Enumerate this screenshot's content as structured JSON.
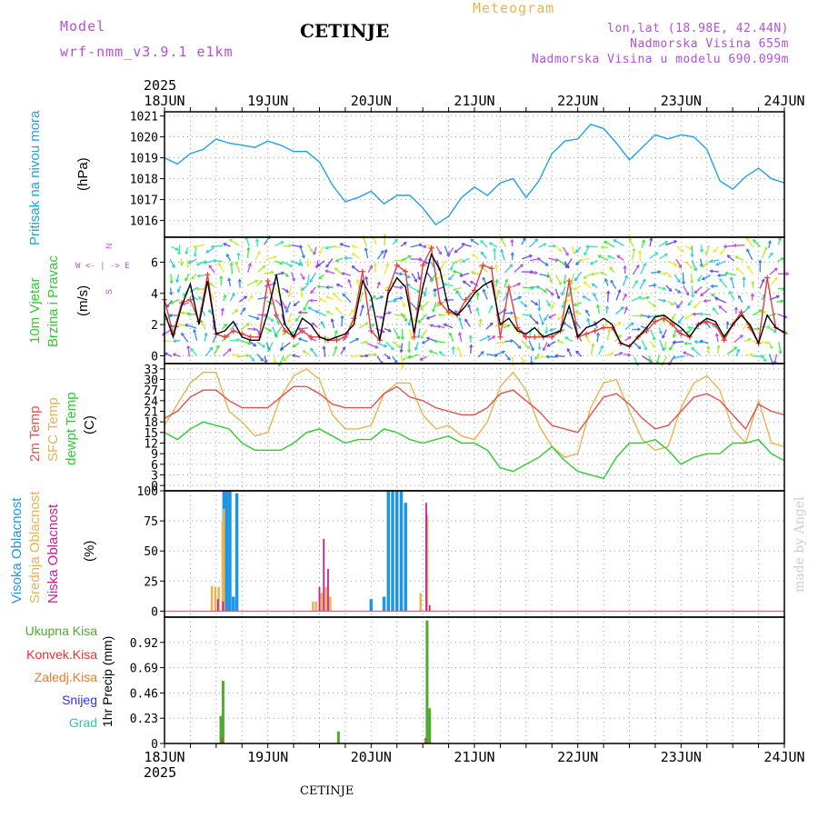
{
  "header": {
    "model_label": "Model",
    "model_name": "wrf-nmm_v3.9.1 e1km",
    "station": "CETINJE",
    "meteogram": "Meteogram",
    "coords": "lon,lat (18.98E, 42.44N)",
    "elevation": "Nadmorska Visina 655m",
    "model_elevation": "Nadmorska Visina u modelu 690.099m"
  },
  "footer": {
    "station": "CETINJE",
    "credit": "made by Angel"
  },
  "colors": {
    "pressure": "#1fa2e6",
    "wind_speed": "#000000",
    "gust": "#e63c3c",
    "t2m": "#e65050",
    "sfc": "#e6b450",
    "dew": "#2ecc2e",
    "high_cloud": "#1e96e6",
    "mid_cloud": "#e6b450",
    "low_cloud": "#c81e96",
    "total_precip": "#50aa32",
    "convective": "#e63232",
    "freezing": "#f07828",
    "snow": "#3232e6",
    "hail": "#28c8b4",
    "purple_text": "#b450dc"
  },
  "time_axis": {
    "top_year": "2025",
    "bottom_year": "2025",
    "day_labels": [
      "18JUN",
      "19JUN",
      "20JUN",
      "21JUN",
      "22JUN",
      "23JUN",
      "24JUN"
    ]
  },
  "panel_labels": {
    "pressure": [
      "Pritisak na nivou mora"
    ],
    "pressure_unit": "(hPa)",
    "wind": [
      "10m Vjetar",
      "Brzina i Pravac"
    ],
    "wind_unit": "(m/s)",
    "compass": [
      "N",
      "W <- | -> E",
      "S"
    ],
    "temp": [
      "2m Temp",
      "SFC Temp",
      "dewpt Temp"
    ],
    "temp_unit": "(C)",
    "cloud": [
      "Visoka Oblacnost",
      "Srednja Oblacnost",
      "Niska Oblacnost"
    ],
    "cloud_unit": "(%)",
    "precip": [
      "Ukupna Kisa",
      "Konvek.Kisa",
      "Zaledj.Kisa",
      "Snijeg",
      "Grad"
    ],
    "precip_unit": "1hr Precip (mm)"
  },
  "chart_data": [
    {
      "type": "line",
      "panel": "pressure",
      "ylabel": "Pritisak na nivou mora (hPa)",
      "ylim": [
        1015.2,
        1021.2
      ],
      "yticks": [
        1016,
        1017,
        1018,
        1019,
        1020,
        1021
      ],
      "xlim_hours": [
        0,
        144
      ],
      "series": [
        {
          "name": "Pritisak na nivou mora",
          "x": [
            0,
            3,
            6,
            9,
            12,
            15,
            18,
            21,
            24,
            27,
            30,
            33,
            36,
            39,
            42,
            45,
            48,
            51,
            54,
            57,
            60,
            63,
            66,
            69,
            72,
            75,
            78,
            81,
            84,
            87,
            90,
            93,
            96,
            99,
            102,
            105,
            108,
            111,
            114,
            117,
            120,
            123,
            126,
            129,
            132,
            135,
            138,
            141,
            144
          ],
          "values": [
            1019.0,
            1018.7,
            1019.2,
            1019.4,
            1019.9,
            1019.7,
            1019.6,
            1019.5,
            1019.8,
            1019.6,
            1019.3,
            1019.3,
            1018.8,
            1017.7,
            1016.9,
            1017.1,
            1017.4,
            1016.8,
            1017.2,
            1017.2,
            1016.6,
            1015.8,
            1016.2,
            1017.1,
            1017.6,
            1017.2,
            1017.8,
            1018.0,
            1017.1,
            1017.9,
            1019.2,
            1019.8,
            1019.9,
            1020.6,
            1020.4,
            1019.7,
            1018.9,
            1019.5,
            1020.1,
            1019.9,
            1020.1,
            1020.0,
            1019.4,
            1017.9,
            1017.5,
            1018.1,
            1018.5,
            1018.0,
            1017.8
          ]
        }
      ]
    },
    {
      "type": "line",
      "panel": "wind",
      "ylabel": "10m Vjetar Brzina i Pravac (m/s)",
      "ylim": [
        -0.5,
        7.6
      ],
      "yticks": [
        0,
        2,
        4,
        6
      ],
      "xlim_hours": [
        0,
        144
      ],
      "series": [
        {
          "name": "Brzina",
          "x": [
            0,
            2,
            4,
            6,
            8,
            10,
            12,
            14,
            16,
            18,
            20,
            22,
            24,
            26,
            28,
            30,
            32,
            34,
            36,
            38,
            40,
            42,
            44,
            46,
            48,
            50,
            52,
            54,
            56,
            58,
            60,
            62,
            64,
            66,
            68,
            70,
            72,
            74,
            76,
            78,
            80,
            82,
            84,
            86,
            88,
            90,
            92,
            94,
            96,
            98,
            100,
            102,
            104,
            106,
            108,
            110,
            112,
            114,
            116,
            118,
            120,
            122,
            124,
            126,
            128,
            130,
            132,
            134,
            136,
            138,
            140,
            142,
            144
          ],
          "values": [
            2.8,
            1.2,
            3.2,
            4.6,
            2.0,
            4.8,
            1.4,
            1.6,
            2.2,
            1.2,
            1.0,
            1.0,
            2.8,
            5.2,
            2.0,
            1.2,
            2.4,
            2.0,
            1.2,
            1.0,
            1.2,
            1.4,
            2.0,
            4.8,
            3.8,
            1.0,
            4.0,
            5.0,
            4.4,
            1.5,
            4.4,
            6.5,
            5.5,
            3.0,
            2.6,
            3.2,
            4.0,
            4.5,
            4.8,
            2.0,
            2.4,
            1.6,
            1.4,
            1.8,
            1.2,
            1.4,
            1.6,
            3.2,
            1.2,
            1.8,
            2.0,
            2.4,
            2.0,
            0.8,
            0.6,
            1.2,
            1.8,
            2.5,
            2.6,
            2.2,
            1.8,
            1.2,
            2.0,
            2.4,
            2.2,
            1.2,
            2.0,
            2.6,
            2.0,
            0.8,
            2.6,
            1.8,
            1.5
          ]
        },
        {
          "name": "Udar",
          "x": [
            0,
            2,
            4,
            6,
            8,
            10,
            12,
            14,
            16,
            18,
            20,
            22,
            24,
            26,
            28,
            30,
            32,
            34,
            36,
            38,
            40,
            42,
            44,
            46,
            48,
            50,
            52,
            54,
            56,
            58,
            60,
            62,
            64,
            66,
            68,
            70,
            72,
            74,
            76,
            78,
            80,
            82,
            84,
            86,
            88,
            90,
            92,
            94,
            96,
            98,
            100,
            102,
            104,
            106,
            108,
            110,
            112,
            114,
            116,
            118,
            120,
            122,
            124,
            126,
            128,
            130,
            132,
            134,
            136,
            138,
            140,
            142,
            144
          ],
          "values": [
            3.6,
            1.4,
            3.4,
            3.6,
            2.2,
            5.2,
            1.4,
            1.2,
            1.6,
            1.4,
            1.2,
            1.2,
            4.8,
            2.6,
            1.6,
            1.2,
            1.6,
            1.2,
            1.2,
            1.0,
            1.0,
            1.2,
            2.4,
            5.4,
            1.6,
            1.0,
            4.2,
            5.8,
            5.4,
            1.2,
            5.8,
            6.9,
            3.4,
            2.8,
            2.6,
            3.6,
            4.2,
            5.8,
            5.6,
            1.2,
            4.4,
            1.8,
            1.2,
            1.2,
            1.2,
            1.2,
            1.6,
            4.8,
            1.2,
            1.4,
            1.6,
            1.8,
            1.8,
            0.8,
            0.6,
            1.2,
            1.6,
            2.2,
            2.4,
            2.0,
            1.4,
            1.2,
            2.0,
            2.2,
            2.0,
            1.0,
            2.0,
            2.8,
            1.8,
            0.8,
            5.0,
            1.8,
            1.5
          ]
        }
      ]
    },
    {
      "type": "line",
      "panel": "temperature",
      "ylabel": "2m Temp / SFC Temp / dewpt Temp (C)",
      "ylim": [
        -1.5,
        34.5
      ],
      "yticks": [
        0,
        3,
        6,
        9,
        12,
        15,
        18,
        21,
        24,
        27,
        30,
        33
      ],
      "xlim_hours": [
        0,
        144
      ],
      "series": [
        {
          "name": "2m Temp",
          "x": [
            0,
            3,
            6,
            9,
            12,
            15,
            18,
            21,
            24,
            27,
            30,
            33,
            36,
            39,
            42,
            45,
            48,
            51,
            54,
            57,
            60,
            63,
            66,
            69,
            72,
            75,
            78,
            81,
            84,
            87,
            90,
            93,
            96,
            99,
            102,
            105,
            108,
            111,
            114,
            117,
            120,
            123,
            126,
            129,
            132,
            135,
            138,
            141,
            144
          ],
          "values": [
            19,
            21,
            25,
            27,
            27,
            24,
            22,
            22,
            22,
            25,
            28,
            28,
            26,
            23,
            22,
            22,
            22,
            26,
            28,
            25,
            24,
            22,
            21,
            20,
            20,
            22,
            26,
            27,
            24,
            21,
            17,
            16,
            15,
            20,
            25,
            26,
            23,
            19,
            16,
            17,
            21,
            25,
            26,
            24,
            20,
            16,
            23,
            21,
            20
          ]
        },
        {
          "name": "SFC Temp",
          "x": [
            0,
            3,
            6,
            9,
            12,
            15,
            18,
            21,
            24,
            27,
            30,
            33,
            36,
            39,
            42,
            45,
            48,
            51,
            54,
            57,
            60,
            63,
            66,
            69,
            72,
            75,
            78,
            81,
            84,
            87,
            90,
            93,
            96,
            99,
            102,
            105,
            108,
            111,
            114,
            117,
            120,
            123,
            126,
            129,
            132,
            135,
            138,
            141,
            144
          ],
          "values": [
            17,
            23,
            29,
            32,
            32,
            21,
            18,
            14,
            15,
            25,
            31,
            33,
            30,
            20,
            16,
            16,
            17,
            26,
            29,
            29,
            20,
            16,
            17,
            14,
            13,
            18,
            28,
            32,
            27,
            17,
            11,
            8,
            9,
            22,
            29,
            30,
            21,
            13,
            10,
            11,
            22,
            29,
            31,
            27,
            16,
            12,
            24,
            12,
            11
          ]
        },
        {
          "name": "dewpt Temp",
          "x": [
            0,
            3,
            6,
            9,
            12,
            15,
            18,
            21,
            24,
            27,
            30,
            33,
            36,
            39,
            42,
            45,
            48,
            51,
            54,
            57,
            60,
            63,
            66,
            69,
            72,
            75,
            78,
            81,
            84,
            87,
            90,
            93,
            96,
            99,
            102,
            105,
            108,
            111,
            114,
            117,
            120,
            123,
            126,
            129,
            132,
            135,
            138,
            141,
            144
          ],
          "values": [
            15,
            13,
            16,
            18,
            17,
            16,
            12,
            10,
            10,
            10,
            12,
            15,
            16,
            14,
            12,
            13,
            13,
            16,
            15,
            13,
            12,
            13,
            14,
            12,
            12,
            10,
            5,
            4,
            6,
            8,
            11,
            7,
            4,
            3,
            2,
            8,
            12,
            12,
            13,
            10,
            6,
            8,
            9,
            9,
            12,
            12,
            13,
            9,
            7
          ]
        }
      ]
    },
    {
      "type": "bar",
      "panel": "cloud",
      "ylabel": "Oblacnost (%)",
      "ylim": [
        -5,
        100
      ],
      "yticks": [
        0,
        25,
        50,
        75,
        100
      ],
      "xlim_hours": [
        0,
        144
      ],
      "series": [
        {
          "name": "Visoka Oblacnost",
          "x": [
            13.8,
            14.5,
            15.2,
            16.0,
            16.8,
            48.0,
            51.0,
            52.0,
            53.0,
            54.0,
            55.0,
            56.0
          ],
          "values": [
            100,
            100,
            100,
            12,
            98,
            10,
            12,
            100,
            100,
            100,
            100,
            90
          ]
        },
        {
          "name": "Srednja Oblacnost",
          "x": [
            11.0,
            11.8,
            12.6,
            13.5,
            13.8,
            34.5,
            35.2,
            36.5,
            37.5,
            38.5,
            59.5,
            61.0
          ],
          "values": [
            21,
            20,
            20,
            75,
            85,
            8,
            8,
            15,
            20,
            12,
            15,
            80
          ]
        },
        {
          "name": "Niska Oblacnost",
          "x": [
            12.4,
            13.6,
            36.0,
            37.0,
            38.0,
            60.8,
            61.6
          ],
          "values": [
            10,
            8,
            20,
            60,
            35,
            90,
            5
          ]
        }
      ]
    },
    {
      "type": "bar",
      "panel": "precip",
      "ylabel": "1hr Precip (mm)",
      "ylim": [
        0,
        1.15
      ],
      "yticks": [
        0,
        0.23,
        0.46,
        0.69,
        0.92
      ],
      "xlim_hours": [
        0,
        144
      ],
      "series": [
        {
          "name": "Ukupna Kisa",
          "x": [
            13.1,
            13.6,
            40.4,
            61.0,
            61.6
          ],
          "values": [
            0.25,
            0.57,
            0.11,
            1.12,
            0.32
          ]
        },
        {
          "name": "Konvek.Kisa",
          "x": [
            13.4,
            60.6
          ],
          "values": [
            0.05,
            0.05
          ]
        }
      ]
    }
  ]
}
